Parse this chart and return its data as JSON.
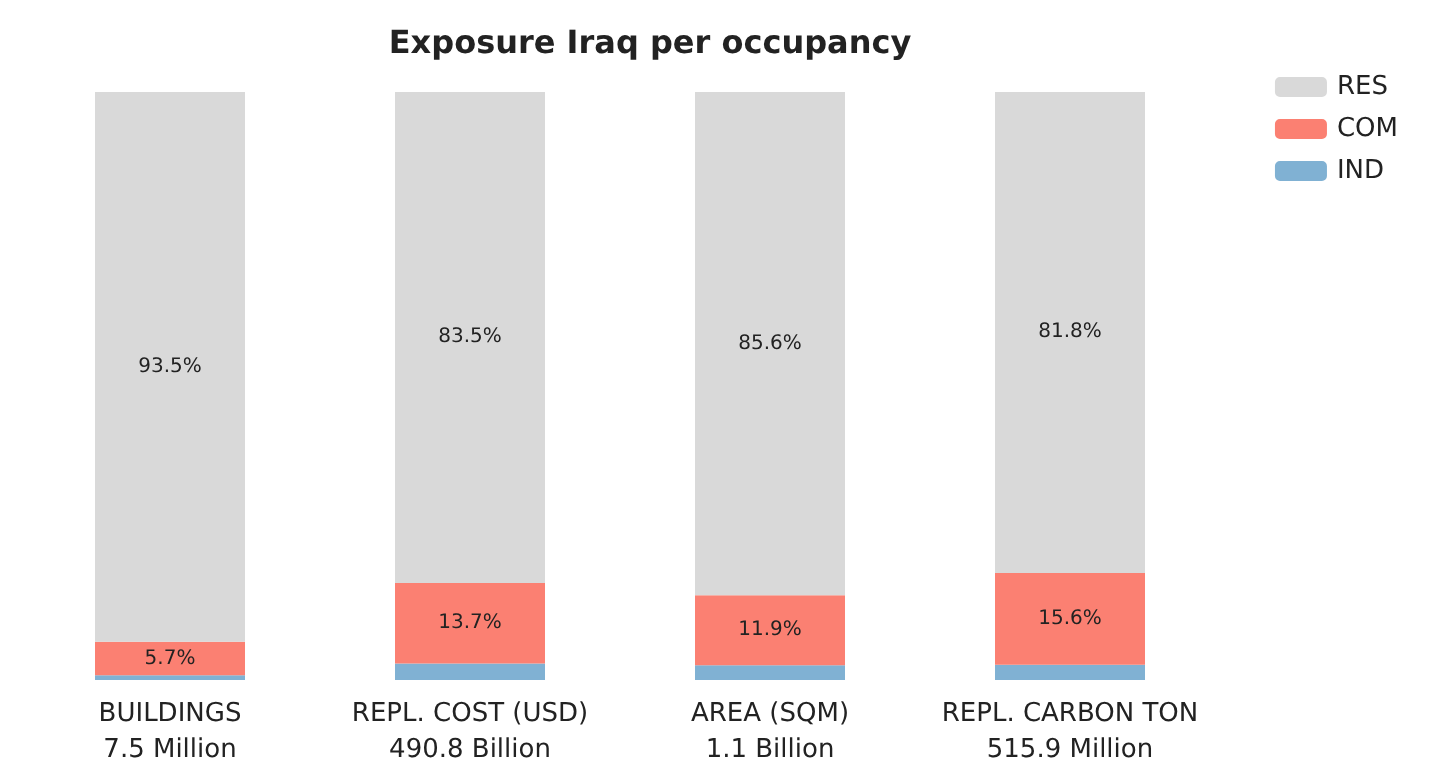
{
  "chart_data": {
    "type": "bar",
    "title": "Exposure Iraq per occupancy",
    "stacked": true,
    "categories": [
      "BUILDINGS\n7.5 Million",
      "REPL. COST (USD)\n490.8 Billion",
      "AREA (SQM)\n1.1 Billion",
      "REPL. CARBON TON\n515.9 Million"
    ],
    "series": [
      {
        "name": "IND",
        "color": "#80b1d3",
        "values": [
          0.8,
          2.8,
          2.5,
          2.6
        ],
        "value_labels": [
          null,
          null,
          null,
          null
        ]
      },
      {
        "name": "COM",
        "color": "#fb8072",
        "values": [
          5.7,
          13.7,
          11.9,
          15.6
        ],
        "value_labels": [
          "5.7%",
          "13.7%",
          "11.9%",
          "15.6%"
        ]
      },
      {
        "name": "RES",
        "color": "#d9d9d9",
        "values": [
          93.5,
          83.5,
          85.6,
          81.8
        ],
        "value_labels": [
          "93.5%",
          "83.5%",
          "85.6%",
          "81.8%"
        ]
      }
    ],
    "ylim": [
      0,
      100
    ],
    "tick_labels": "x",
    "legend": "top right"
  }
}
